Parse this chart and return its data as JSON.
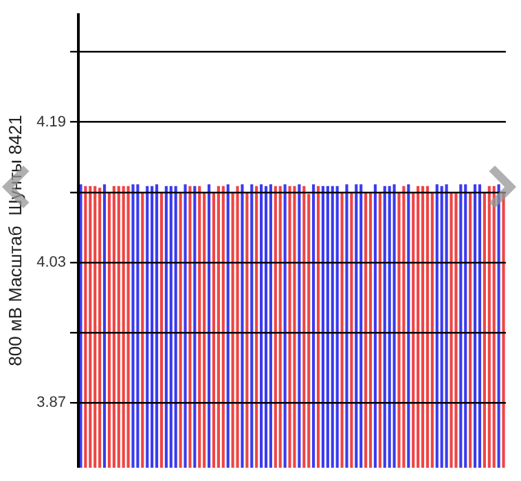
{
  "chart_data": {
    "type": "bar",
    "ylabel": "800 мВ Масштаб  Шунты 8421",
    "categories": [
      null,
      null,
      null,
      null,
      null,
      null,
      null,
      null,
      null,
      null,
      null,
      null,
      null,
      null,
      null,
      null,
      null,
      null,
      null,
      null,
      null,
      null,
      null,
      null,
      null,
      null,
      null,
      null,
      null,
      null,
      null,
      null,
      null,
      null,
      null,
      null,
      null,
      null,
      null,
      null,
      null,
      null,
      null,
      null,
      null,
      null,
      null,
      null,
      null,
      null,
      null,
      null,
      null,
      null,
      null,
      null,
      null,
      null,
      null,
      null,
      null,
      null,
      null,
      null,
      null,
      null,
      null,
      null,
      null,
      null,
      null,
      null,
      null,
      null,
      null,
      null,
      null,
      null,
      null,
      null,
      null,
      null,
      null,
      null,
      null,
      null,
      null,
      null,
      null,
      null
    ],
    "values": [
      4.119,
      4.117,
      4.117,
      4.117,
      4.115,
      4.119,
      4.11,
      4.117,
      4.117,
      4.117,
      4.117,
      4.119,
      4.119,
      4.11,
      4.117,
      4.117,
      4.119,
      4.11,
      4.117,
      4.117,
      4.117,
      4.11,
      4.119,
      4.117,
      4.117,
      4.117,
      4.11,
      4.119,
      4.11,
      4.117,
      4.117,
      4.119,
      4.11,
      4.117,
      4.119,
      4.11,
      4.119,
      4.117,
      4.119,
      4.117,
      4.119,
      4.117,
      4.117,
      4.119,
      4.117,
      4.117,
      4.119,
      4.117,
      4.108,
      4.119,
      4.117,
      4.117,
      4.117,
      4.117,
      4.117,
      4.11,
      4.119,
      4.11,
      4.119,
      4.119,
      4.11,
      4.11,
      4.119,
      4.11,
      4.117,
      4.117,
      4.119,
      4.11,
      4.117,
      4.119,
      4.11,
      4.117,
      4.117,
      4.117,
      4.11,
      4.119,
      4.117,
      4.119,
      4.11,
      4.11,
      4.119,
      4.119,
      4.11,
      4.119,
      4.119,
      4.11,
      4.117,
      4.117,
      4.119,
      4.11
    ],
    "colors": [
      "#3b3bef",
      "#ef4444",
      "#ef4444",
      "#ef4444",
      "#ef4444",
      "#3b3bef",
      "#ef4444",
      "#ef4444",
      "#ef4444",
      "#ef4444",
      "#ef4444",
      "#3b3bef",
      "#3b3bef",
      "#ef4444",
      "#3b3bef",
      "#3b3bef",
      "#3b3bef",
      "#ef4444",
      "#3b3bef",
      "#3b3bef",
      "#3b3bef",
      "#ef4444",
      "#3b3bef",
      "#ef4444",
      "#3b3bef",
      "#ef4444",
      "#ef4444",
      "#3b3bef",
      "#ef4444",
      "#ef4444",
      "#ef4444",
      "#3b3bef",
      "#ef4444",
      "#ef4444",
      "#3b3bef",
      "#ef4444",
      "#3b3bef",
      "#ef4444",
      "#3b3bef",
      "#3b3bef",
      "#3b3bef",
      "#ef4444",
      "#ef4444",
      "#3b3bef",
      "#ef4444",
      "#ef4444",
      "#3b3bef",
      "#ef4444",
      "#ef4444",
      "#3b3bef",
      "#ef4444",
      "#3b3bef",
      "#3b3bef",
      "#3b3bef",
      "#3b3bef",
      "#ef4444",
      "#3b3bef",
      "#ef4444",
      "#3b3bef",
      "#3b3bef",
      "#ef4444",
      "#ef4444",
      "#3b3bef",
      "#ef4444",
      "#3b3bef",
      "#3b3bef",
      "#3b3bef",
      "#ef4444",
      "#ef4444",
      "#3b3bef",
      "#ef4444",
      "#ef4444",
      "#ef4444",
      "#ef4444",
      "#ef4444",
      "#3b3bef",
      "#3b3bef",
      "#3b3bef",
      "#ef4444",
      "#ef4444",
      "#3b3bef",
      "#3b3bef",
      "#ef4444",
      "#3b3bef",
      "#3b3bef",
      "#ef4444",
      "#ef4444",
      "#ef4444",
      "#3b3bef",
      "#ef4444"
    ],
    "ylim": [
      3.796,
      4.314
    ],
    "yticks": [
      3.87,
      {
        "value": 3.95,
        "label": null
      },
      4.03,
      {
        "value": 4.11,
        "label": null
      },
      4.19,
      {
        "value": 4.27,
        "label": null
      }
    ],
    "grid": "y",
    "legend": false,
    "tick_labels": "y"
  }
}
